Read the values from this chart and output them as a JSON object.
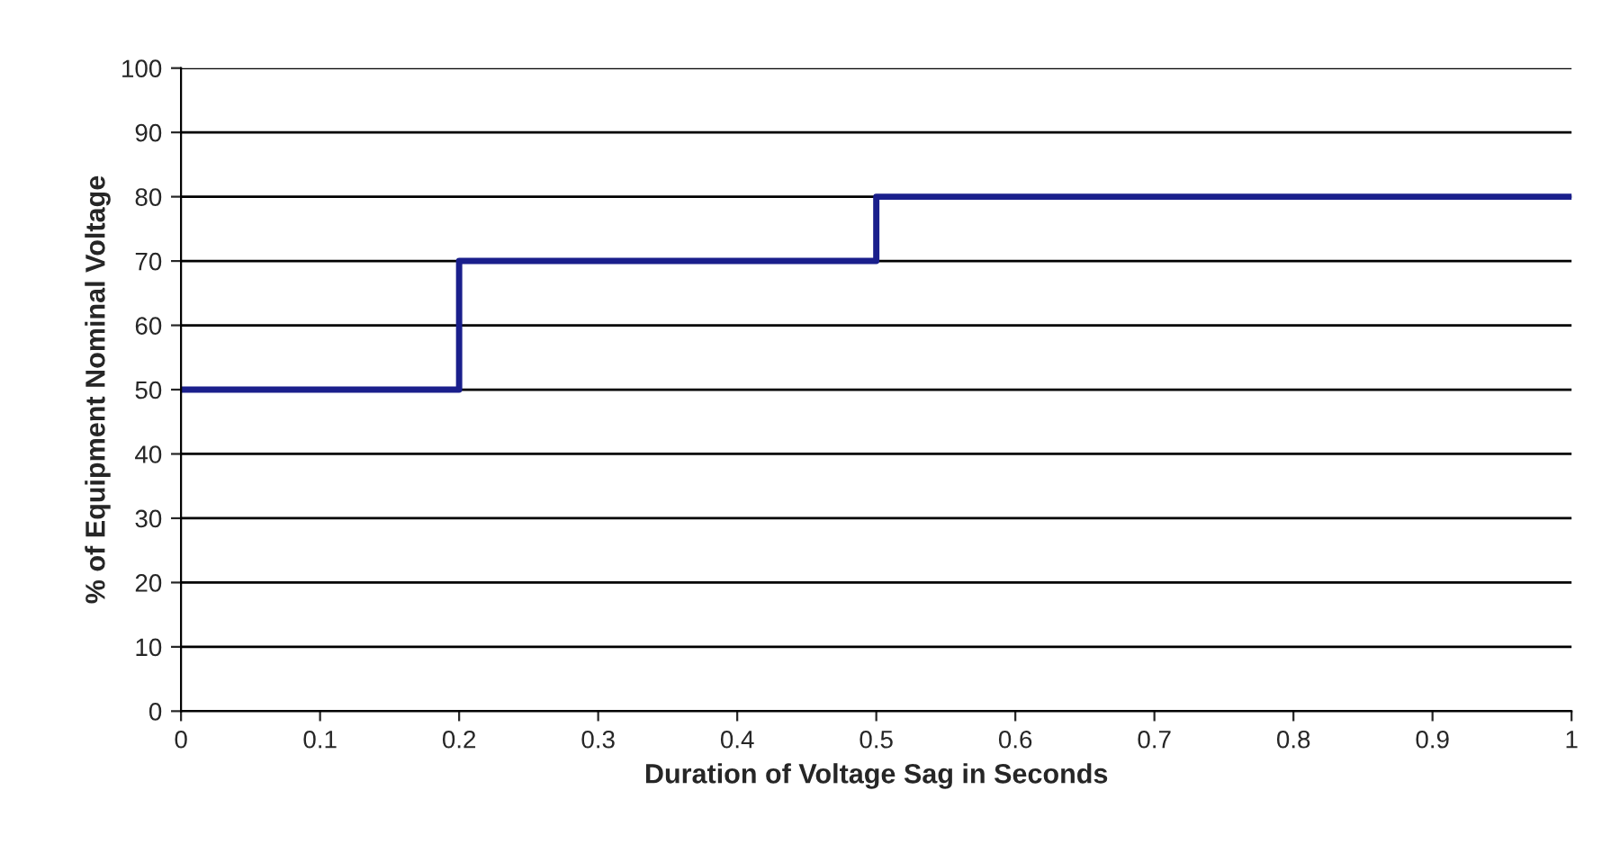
{
  "chart_data": {
    "type": "step",
    "xlabel": "Duration of Voltage Sag in Seconds",
    "ylabel": "% of Equipment Nominal Voltage",
    "x": [
      0,
      0.2,
      0.5,
      1
    ],
    "series": [
      {
        "color": "#1a1f8c",
        "values": [
          50,
          70,
          80,
          80
        ]
      }
    ],
    "xlim": [
      0,
      1
    ],
    "xticks": [
      0,
      0.1,
      0.2,
      0.3,
      0.4,
      0.5,
      0.6,
      0.7,
      0.8,
      0.9,
      1
    ],
    "ylim": [
      0,
      100
    ],
    "yticks": [
      0,
      10,
      20,
      30,
      40,
      50,
      60,
      70,
      80,
      90,
      100
    ],
    "grid": "y",
    "legend": false,
    "line_style": "solid",
    "marker": "none"
  }
}
